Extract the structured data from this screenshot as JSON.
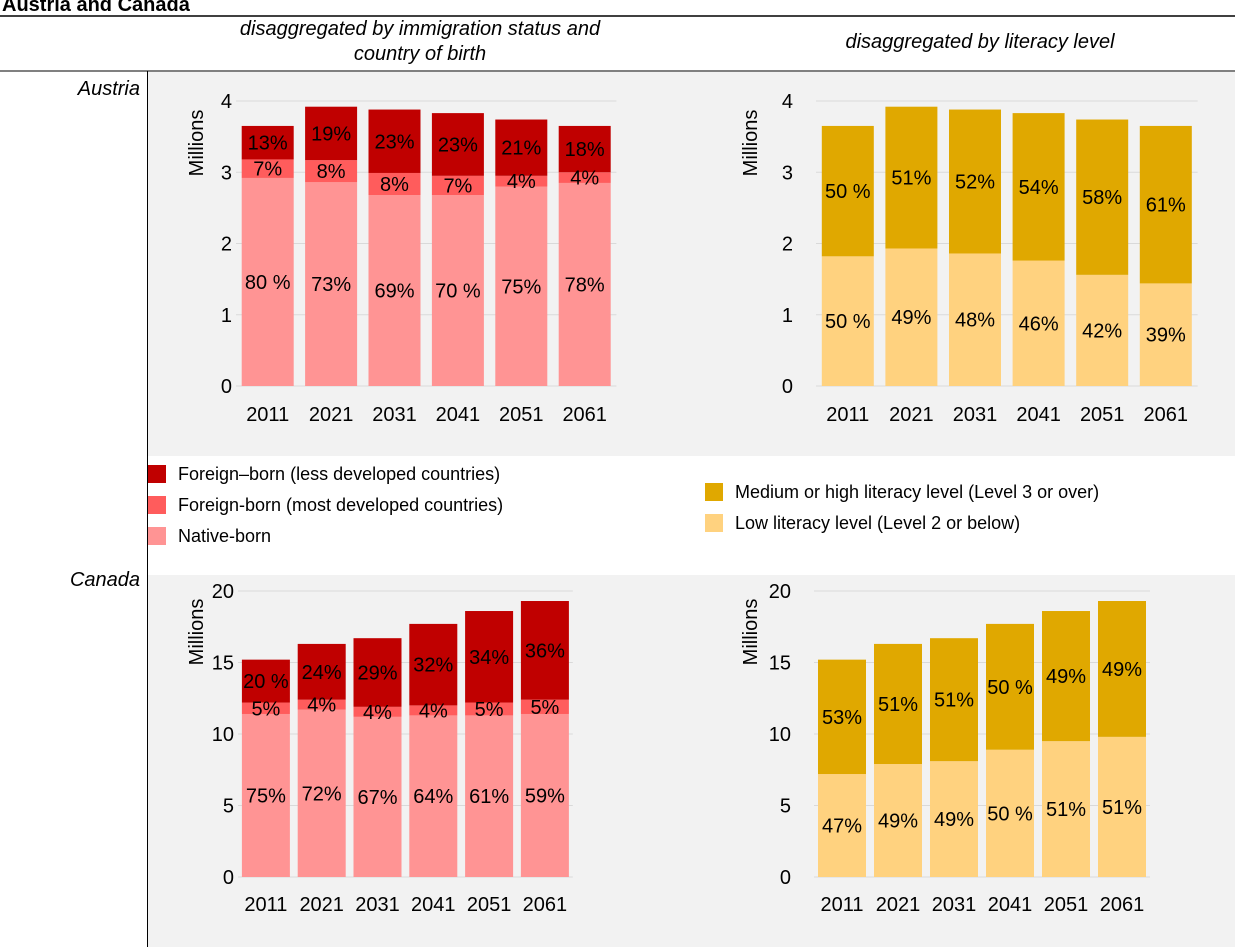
{
  "title": "Austria and Canada",
  "column_headings": [
    [
      "disaggregated by immigration status and",
      "country of birth"
    ],
    [
      "disaggregated by literacy level"
    ]
  ],
  "row_labels": [
    "Austria",
    "Canada"
  ],
  "chart_data": [
    {
      "type": "bar",
      "stacked": true,
      "ylabel": "Millions",
      "legend": "bottom",
      "categories": [
        "2011",
        "2021",
        "2031",
        "2041",
        "2051",
        "2061"
      ],
      "ylim": [
        0,
        4
      ],
      "yticks": [
        0,
        1,
        2,
        3,
        4
      ],
      "grid": true,
      "series": [
        {
          "name": "Native-born",
          "color": "#ff9494",
          "values": [
            2.92,
            2.86,
            2.68,
            2.68,
            2.8,
            2.85
          ],
          "labels": [
            "80 %",
            "73%",
            "69%",
            "70 %",
            "75%",
            "78%"
          ]
        },
        {
          "name": "Foreign-born (most developed countries)",
          "color": "#ff5c5c",
          "values": [
            0.26,
            0.31,
            0.31,
            0.27,
            0.15,
            0.15
          ],
          "labels": [
            "7%",
            "8%",
            "8%",
            "7%",
            "4%",
            "4%"
          ]
        },
        {
          "name": "Foreign–born (less developed countries)",
          "color": "#c00000",
          "values": [
            0.47,
            0.75,
            0.89,
            0.88,
            0.79,
            0.65
          ],
          "labels": [
            "13%",
            "19%",
            "23%",
            "23%",
            "21%",
            "18%"
          ]
        }
      ]
    },
    {
      "type": "bar",
      "stacked": true,
      "ylabel": "Millions",
      "legend": "bottom",
      "categories": [
        "2011",
        "2021",
        "2031",
        "2041",
        "2051",
        "2061"
      ],
      "ylim": [
        0,
        4
      ],
      "yticks": [
        0,
        1,
        2,
        3,
        4
      ],
      "grid": true,
      "series": [
        {
          "name": "Low literacy level (Level 2 or below)",
          "color": "#ffd27f",
          "values": [
            1.82,
            1.93,
            1.86,
            1.76,
            1.56,
            1.44
          ],
          "labels": [
            "50 %",
            "49%",
            "48%",
            "46%",
            "42%",
            "39%"
          ]
        },
        {
          "name": "Medium or high literacy level (Level 3 or over)",
          "color": "#e0a800",
          "values": [
            1.83,
            1.99,
            2.02,
            2.07,
            2.18,
            2.21
          ],
          "labels": [
            "50 %",
            "51%",
            "52%",
            "54%",
            "58%",
            "61%"
          ]
        }
      ]
    },
    {
      "type": "bar",
      "stacked": true,
      "ylabel": "Millions",
      "categories": [
        "2011",
        "2021",
        "2031",
        "2041",
        "2051",
        "2061"
      ],
      "ylim": [
        0,
        20
      ],
      "yticks": [
        0,
        5,
        10,
        15,
        20
      ],
      "grid": true,
      "series": [
        {
          "name": "Native-born",
          "color": "#ff9494",
          "values": [
            11.4,
            11.7,
            11.2,
            11.3,
            11.3,
            11.4
          ],
          "labels": [
            "75%",
            "72%",
            "67%",
            "64%",
            "61%",
            "59%"
          ]
        },
        {
          "name": "Foreign-born (most developed countries)",
          "color": "#ff5c5c",
          "values": [
            0.8,
            0.7,
            0.7,
            0.7,
            0.9,
            1.0
          ],
          "labels": [
            "5%",
            "4%",
            "4%",
            "4%",
            "5%",
            "5%"
          ]
        },
        {
          "name": "Foreign–born (less developed countries)",
          "color": "#c00000",
          "values": [
            3.0,
            3.9,
            4.8,
            5.7,
            6.4,
            6.9
          ],
          "labels": [
            "20 %",
            "24%",
            "29%",
            "32%",
            "34%",
            "36%"
          ]
        }
      ]
    },
    {
      "type": "bar",
      "stacked": true,
      "ylabel": "Millions",
      "categories": [
        "2011",
        "2021",
        "2031",
        "2041",
        "2051",
        "2061"
      ],
      "ylim": [
        0,
        20
      ],
      "yticks": [
        0,
        5,
        10,
        15,
        20
      ],
      "grid": true,
      "series": [
        {
          "name": "Low literacy level (Level 2 or below)",
          "color": "#ffd27f",
          "values": [
            7.2,
            7.9,
            8.1,
            8.9,
            9.5,
            9.8
          ],
          "labels": [
            "47%",
            "49%",
            "49%",
            "50 %",
            "51%",
            "51%"
          ]
        },
        {
          "name": "Medium or high literacy level (Level 3 or over)",
          "color": "#e0a800",
          "values": [
            8.0,
            8.4,
            8.6,
            8.8,
            9.1,
            9.5
          ],
          "labels": [
            "53%",
            "51%",
            "51%",
            "50 %",
            "49%",
            "49%"
          ]
        }
      ]
    }
  ]
}
